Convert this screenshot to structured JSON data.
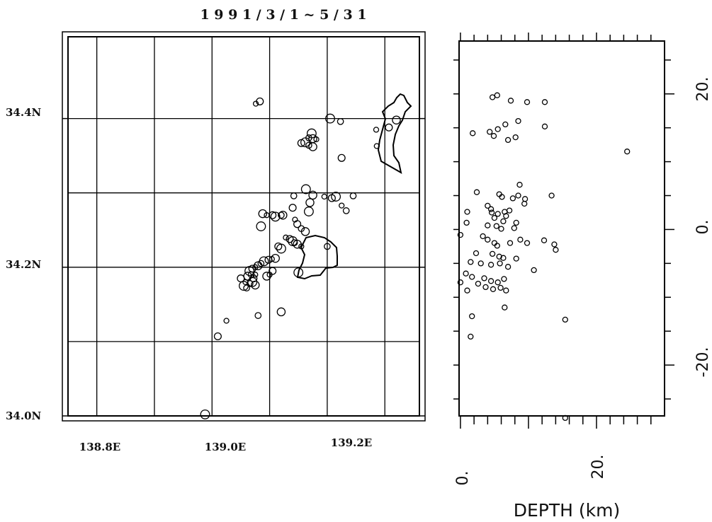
{
  "title": "1 9 9 1 / 3 / 1 ~ 5 / 3 1",
  "chart_data": [
    {
      "type": "scatter",
      "panel": "map",
      "x_ticks": [
        "138.8E",
        "139.0E",
        "139.2E"
      ],
      "y_ticks": [
        "34.0N",
        "34.2N",
        "34.4N"
      ],
      "xlim": [
        138.72,
        139.33
      ],
      "ylim": [
        34.0,
        34.51
      ],
      "grid": true,
      "points": [
        [
          139.046,
          34.42
        ],
        [
          139.053,
          34.423
        ],
        [
          139.175,
          34.4
        ],
        [
          139.193,
          34.396
        ],
        [
          139.29,
          34.398
        ],
        [
          139.255,
          34.385
        ],
        [
          139.277,
          34.388
        ],
        [
          139.143,
          34.38
        ],
        [
          139.138,
          34.374
        ],
        [
          139.145,
          34.373
        ],
        [
          139.151,
          34.372
        ],
        [
          139.125,
          34.367
        ],
        [
          139.132,
          34.368
        ],
        [
          139.138,
          34.364
        ],
        [
          139.145,
          34.362
        ],
        [
          139.256,
          34.363
        ],
        [
          139.195,
          34.347
        ],
        [
          139.133,
          34.305
        ],
        [
          139.112,
          34.296
        ],
        [
          139.145,
          34.297
        ],
        [
          139.165,
          34.295
        ],
        [
          139.178,
          34.293
        ],
        [
          139.185,
          34.295
        ],
        [
          139.215,
          34.296
        ],
        [
          139.14,
          34.287
        ],
        [
          139.195,
          34.283
        ],
        [
          139.11,
          34.28
        ],
        [
          139.138,
          34.275
        ],
        [
          139.203,
          34.276
        ],
        [
          139.058,
          34.272
        ],
        [
          139.065,
          34.27
        ],
        [
          139.075,
          34.27
        ],
        [
          139.08,
          34.268
        ],
        [
          139.09,
          34.27
        ],
        [
          139.093,
          34.27
        ],
        [
          139.114,
          34.264
        ],
        [
          139.118,
          34.258
        ],
        [
          139.055,
          34.255
        ],
        [
          139.125,
          34.252
        ],
        [
          139.132,
          34.248
        ],
        [
          139.098,
          34.24
        ],
        [
          139.105,
          34.238
        ],
        [
          139.11,
          34.235
        ],
        [
          139.113,
          34.233
        ],
        [
          139.118,
          34.231
        ],
        [
          139.125,
          34.228
        ],
        [
          139.085,
          34.228
        ],
        [
          139.09,
          34.225
        ],
        [
          139.17,
          34.228
        ],
        [
          139.08,
          34.212
        ],
        [
          139.074,
          34.211
        ],
        [
          139.068,
          34.21
        ],
        [
          139.06,
          34.208
        ],
        [
          139.055,
          34.205
        ],
        [
          139.05,
          34.202
        ],
        [
          139.045,
          34.2
        ],
        [
          139.04,
          34.198
        ],
        [
          139.035,
          34.195
        ],
        [
          139.038,
          34.19
        ],
        [
          139.032,
          34.188
        ],
        [
          139.045,
          34.19
        ],
        [
          139.042,
          34.185
        ],
        [
          139.04,
          34.18
        ],
        [
          139.036,
          34.178
        ],
        [
          139.045,
          34.176
        ],
        [
          139.028,
          34.18
        ],
        [
          139.02,
          34.185
        ],
        [
          139.025,
          34.175
        ],
        [
          139.03,
          34.172
        ],
        [
          139.065,
          34.188
        ],
        [
          139.07,
          34.19
        ],
        [
          139.075,
          34.195
        ],
        [
          139.12,
          34.193
        ],
        [
          139.05,
          34.135
        ],
        [
          139.09,
          34.14
        ],
        [
          138.995,
          34.128
        ],
        [
          138.98,
          34.107
        ],
        [
          138.958,
          34.002
        ]
      ]
    },
    {
      "type": "scatter",
      "panel": "depth-section",
      "xlabel": "DEPTH (km)",
      "x_ticks": [
        "0.",
        "20."
      ],
      "y_ticks": [
        "20.",
        "0.",
        "-20."
      ],
      "xlim": [
        -0.2,
        30
      ],
      "ylim": [
        -27.5,
        27.8
      ],
      "grid": false,
      "points": [
        [
          5.4,
          19.8
        ],
        [
          4.7,
          19.5
        ],
        [
          7.4,
          19.0
        ],
        [
          9.8,
          18.8
        ],
        [
          12.4,
          18.8
        ],
        [
          8.5,
          16.0
        ],
        [
          6.6,
          15.5
        ],
        [
          12.4,
          15.2
        ],
        [
          5.5,
          14.8
        ],
        [
          4.3,
          14.4
        ],
        [
          1.8,
          14.2
        ],
        [
          4.9,
          13.8
        ],
        [
          8.1,
          13.6
        ],
        [
          7.0,
          13.2
        ],
        [
          24.5,
          11.5
        ],
        [
          8.7,
          6.6
        ],
        [
          2.4,
          5.5
        ],
        [
          5.7,
          5.2
        ],
        [
          8.5,
          5.0
        ],
        [
          6.1,
          4.8
        ],
        [
          9.5,
          4.5
        ],
        [
          13.4,
          5.0
        ],
        [
          7.7,
          4.6
        ],
        [
          9.4,
          3.8
        ],
        [
          4.0,
          3.5
        ],
        [
          4.5,
          3.0
        ],
        [
          4.6,
          2.5
        ],
        [
          5.5,
          2.3
        ],
        [
          6.5,
          2.6
        ],
        [
          7.2,
          2.8
        ],
        [
          1.0,
          2.6
        ],
        [
          0.9,
          1.0
        ],
        [
          5.0,
          1.7
        ],
        [
          6.7,
          2.0
        ],
        [
          6.3,
          1.2
        ],
        [
          8.2,
          1.0
        ],
        [
          6.0,
          0.1
        ],
        [
          5.3,
          0.5
        ],
        [
          4.0,
          0.6
        ],
        [
          7.9,
          0.2
        ],
        [
          0.0,
          -0.8
        ],
        [
          3.3,
          -1.0
        ],
        [
          4.0,
          -1.5
        ],
        [
          5.0,
          -2.0
        ],
        [
          5.4,
          -2.4
        ],
        [
          7.3,
          -2.0
        ],
        [
          9.8,
          -2.0
        ],
        [
          8.8,
          -1.5
        ],
        [
          13.8,
          -2.2
        ],
        [
          12.3,
          -1.6
        ],
        [
          14.0,
          -3.0
        ],
        [
          2.3,
          -3.5
        ],
        [
          4.7,
          -3.6
        ],
        [
          5.7,
          -4.0
        ],
        [
          6.3,
          -4.2
        ],
        [
          8.2,
          -4.3
        ],
        [
          1.5,
          -4.8
        ],
        [
          3.0,
          -5.0
        ],
        [
          4.5,
          -5.2
        ],
        [
          5.8,
          -5.0
        ],
        [
          7.0,
          -5.5
        ],
        [
          10.8,
          -6.0
        ],
        [
          0.8,
          -6.5
        ],
        [
          1.7,
          -7.0
        ],
        [
          3.5,
          -7.2
        ],
        [
          4.5,
          -7.6
        ],
        [
          5.5,
          -7.8
        ],
        [
          6.4,
          -7.3
        ],
        [
          0.0,
          -7.8
        ],
        [
          2.6,
          -8.0
        ],
        [
          3.7,
          -8.5
        ],
        [
          4.8,
          -8.8
        ],
        [
          5.9,
          -8.6
        ],
        [
          6.7,
          -9.0
        ],
        [
          1.0,
          -9.0
        ],
        [
          6.5,
          -11.5
        ],
        [
          1.7,
          -12.8
        ],
        [
          15.4,
          -13.3
        ],
        [
          1.5,
          -15.8
        ],
        [
          15.4,
          -27.8
        ]
      ]
    }
  ]
}
